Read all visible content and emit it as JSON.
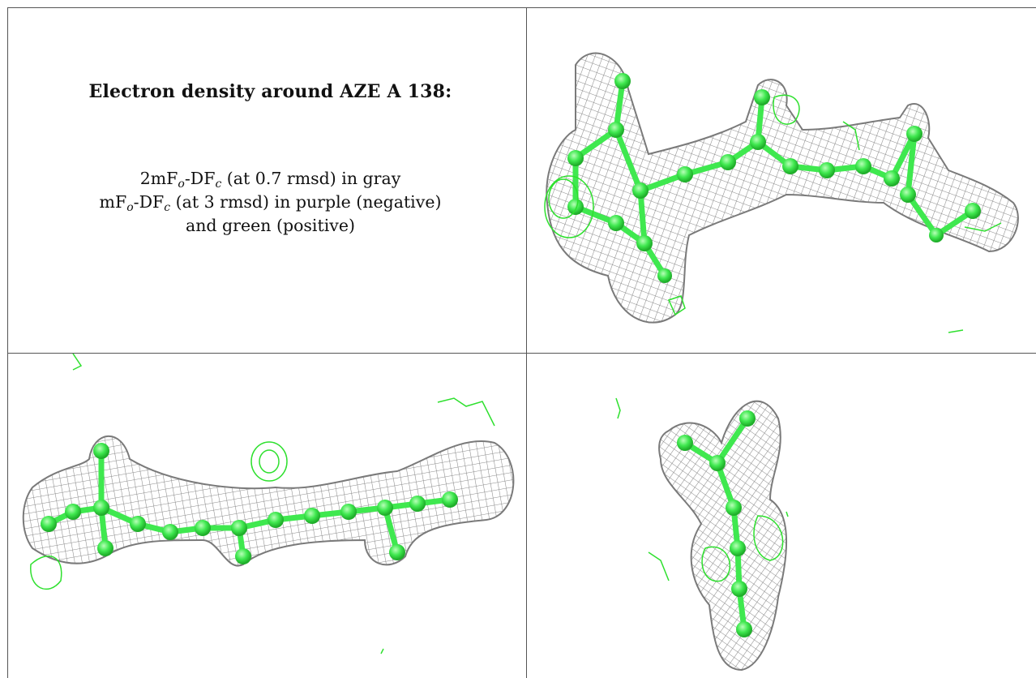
{
  "title": "Electron density around AZE A 138:",
  "legend": {
    "line1_prefix": "2mF",
    "line1_sub1": "o",
    "line1_mid": "-DF",
    "line1_sub2": "c",
    "line1_suffix": " (at 0.7 rmsd) in gray",
    "line2_prefix": "mF",
    "line2_sub1": "o",
    "line2_mid": "-DF",
    "line2_sub2": "c",
    "line2_suffix": " (at 3 rmsd) in purple (negative)",
    "line3": "and green (positive)"
  },
  "views": [
    "view-top-right",
    "view-bottom-left",
    "view-bottom-right"
  ],
  "colors": {
    "mesh_gray": "#8c8c8c",
    "model_green": "#33e64d",
    "positive_green": "#2ee02e",
    "border": "#555555"
  }
}
